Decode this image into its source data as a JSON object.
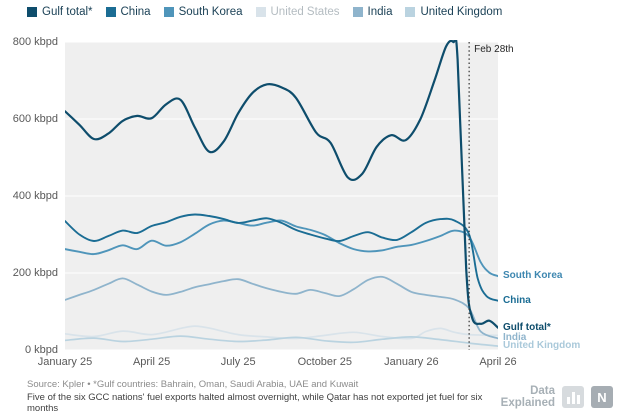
{
  "legend": {
    "items": [
      {
        "label": "Gulf total*",
        "color": "#0e4d6c",
        "text_color": "#1c4257"
      },
      {
        "label": "China",
        "color": "#1b6d94",
        "text_color": "#1c4257"
      },
      {
        "label": "South Korea",
        "color": "#4f95ba",
        "text_color": "#1c4257"
      },
      {
        "label": "United States",
        "color": "#d9e3ea",
        "text_color": "#b4bcc1"
      },
      {
        "label": "India",
        "color": "#8fb4cc",
        "text_color": "#1c4257"
      },
      {
        "label": "United Kingdom",
        "color": "#bad3e0",
        "text_color": "#1c4257"
      }
    ]
  },
  "chart_data": {
    "type": "line",
    "unit": "kbpd",
    "ylim": [
      0,
      800
    ],
    "x_domain_months": [
      0,
      15
    ],
    "grid": true,
    "plot_bg": "#efefef",
    "grid_color": "#ffffff",
    "y_ticks": [
      {
        "value": 0,
        "label": "0 kbpd"
      },
      {
        "value": 200,
        "label": "200 kbpd"
      },
      {
        "value": 400,
        "label": "400 kbpd"
      },
      {
        "value": 600,
        "label": "600 kbpd"
      },
      {
        "value": 800,
        "label": "800 kbpd"
      }
    ],
    "x_ticks": [
      {
        "pos": 0,
        "label": "January 25"
      },
      {
        "pos": 3,
        "label": "April 25"
      },
      {
        "pos": 6,
        "label": "July 25"
      },
      {
        "pos": 9,
        "label": "October 25"
      },
      {
        "pos": 12,
        "label": "January 26"
      },
      {
        "pos": 15,
        "label": "April 26"
      }
    ],
    "annotation": {
      "label": "Feb 28th",
      "x": 14,
      "style": "dotted"
    },
    "series": [
      {
        "name": "United States",
        "color": "#d9e3ea",
        "width": 1.7,
        "points": [
          [
            0,
            42
          ],
          [
            1,
            35
          ],
          [
            2,
            49
          ],
          [
            3,
            40
          ],
          [
            4,
            56
          ],
          [
            4.5,
            62
          ],
          [
            5,
            57
          ],
          [
            6,
            40
          ],
          [
            7,
            34
          ],
          [
            8,
            30
          ],
          [
            9,
            38
          ],
          [
            10,
            46
          ],
          [
            11,
            35
          ],
          [
            12,
            30
          ],
          [
            12.5,
            48
          ],
          [
            13,
            56
          ],
          [
            13.5,
            46
          ],
          [
            14,
            40
          ],
          [
            15,
            38
          ]
        ]
      },
      {
        "name": "United Kingdom",
        "color": "#bad3e0",
        "width": 1.7,
        "points": [
          [
            0,
            25
          ],
          [
            1,
            31
          ],
          [
            2,
            22
          ],
          [
            3,
            28
          ],
          [
            4,
            36
          ],
          [
            5,
            28
          ],
          [
            6,
            22
          ],
          [
            7,
            26
          ],
          [
            8,
            33
          ],
          [
            9,
            24
          ],
          [
            10,
            20
          ],
          [
            11,
            28
          ],
          [
            12,
            34
          ],
          [
            13,
            27
          ],
          [
            14,
            18
          ],
          [
            15,
            10
          ]
        ]
      },
      {
        "name": "India",
        "color": "#8fb4cc",
        "width": 1.8,
        "points": [
          [
            0,
            130
          ],
          [
            0.5,
            143
          ],
          [
            1,
            156
          ],
          [
            1.5,
            172
          ],
          [
            2,
            186
          ],
          [
            2.5,
            170
          ],
          [
            3,
            152
          ],
          [
            3.5,
            143
          ],
          [
            4,
            151
          ],
          [
            4.5,
            163
          ],
          [
            5,
            171
          ],
          [
            5.5,
            179
          ],
          [
            6,
            184
          ],
          [
            6.5,
            172
          ],
          [
            7,
            160
          ],
          [
            7.5,
            151
          ],
          [
            8,
            146
          ],
          [
            8.5,
            156
          ],
          [
            9,
            148
          ],
          [
            9.5,
            140
          ],
          [
            10,
            158
          ],
          [
            10.5,
            182
          ],
          [
            11,
            190
          ],
          [
            11.5,
            172
          ],
          [
            12,
            151
          ],
          [
            12.5,
            143
          ],
          [
            13,
            138
          ],
          [
            13.5,
            131
          ],
          [
            14,
            108
          ],
          [
            14.4,
            48
          ],
          [
            15,
            30
          ]
        ]
      },
      {
        "name": "South Korea",
        "color": "#4f95ba",
        "width": 1.9,
        "points": [
          [
            0,
            262
          ],
          [
            0.5,
            255
          ],
          [
            1,
            249
          ],
          [
            1.5,
            259
          ],
          [
            2,
            272
          ],
          [
            2.5,
            262
          ],
          [
            3,
            284
          ],
          [
            3.5,
            271
          ],
          [
            4,
            280
          ],
          [
            4.5,
            302
          ],
          [
            5,
            326
          ],
          [
            5.5,
            336
          ],
          [
            6,
            330
          ],
          [
            6.5,
            323
          ],
          [
            7,
            331
          ],
          [
            7.5,
            336
          ],
          [
            8,
            321
          ],
          [
            8.5,
            312
          ],
          [
            9,
            299
          ],
          [
            9.5,
            278
          ],
          [
            10,
            262
          ],
          [
            10.5,
            256
          ],
          [
            11,
            259
          ],
          [
            11.5,
            268
          ],
          [
            12,
            273
          ],
          [
            12.5,
            283
          ],
          [
            13,
            296
          ],
          [
            13.5,
            310
          ],
          [
            14,
            294
          ],
          [
            14.4,
            228
          ],
          [
            14.7,
            201
          ],
          [
            15,
            192
          ]
        ]
      },
      {
        "name": "China",
        "color": "#1b6d94",
        "width": 1.9,
        "points": [
          [
            0,
            335
          ],
          [
            0.5,
            300
          ],
          [
            1,
            283
          ],
          [
            1.5,
            296
          ],
          [
            2,
            310
          ],
          [
            2.5,
            304
          ],
          [
            3,
            322
          ],
          [
            3.5,
            332
          ],
          [
            4,
            346
          ],
          [
            4.5,
            352
          ],
          [
            5,
            348
          ],
          [
            5.5,
            340
          ],
          [
            6,
            330
          ],
          [
            6.5,
            336
          ],
          [
            7,
            342
          ],
          [
            7.5,
            330
          ],
          [
            8,
            312
          ],
          [
            8.5,
            300
          ],
          [
            9,
            290
          ],
          [
            9.5,
            283
          ],
          [
            10,
            296
          ],
          [
            10.5,
            306
          ],
          [
            11,
            292
          ],
          [
            11.5,
            286
          ],
          [
            12,
            306
          ],
          [
            12.5,
            330
          ],
          [
            13,
            340
          ],
          [
            13.5,
            336
          ],
          [
            14,
            300
          ],
          [
            14.3,
            185
          ],
          [
            14.6,
            140
          ],
          [
            15,
            128
          ]
        ]
      },
      {
        "name": "Gulf total*",
        "color": "#0e4d6c",
        "width": 2.2,
        "points": [
          [
            0,
            620
          ],
          [
            0.5,
            585
          ],
          [
            1,
            548
          ],
          [
            1.5,
            562
          ],
          [
            2,
            595
          ],
          [
            2.5,
            608
          ],
          [
            3,
            602
          ],
          [
            3.5,
            638
          ],
          [
            4,
            650
          ],
          [
            4.5,
            578
          ],
          [
            5,
            515
          ],
          [
            5.5,
            542
          ],
          [
            6,
            615
          ],
          [
            6.5,
            668
          ],
          [
            7,
            690
          ],
          [
            7.5,
            682
          ],
          [
            8,
            655
          ],
          [
            8.7,
            565
          ],
          [
            9.2,
            538
          ],
          [
            9.8,
            448
          ],
          [
            10.3,
            458
          ],
          [
            10.8,
            528
          ],
          [
            11.3,
            558
          ],
          [
            11.8,
            545
          ],
          [
            12.3,
            598
          ],
          [
            12.8,
            700
          ],
          [
            13.2,
            788
          ],
          [
            13.45,
            800
          ],
          [
            13.6,
            755
          ],
          [
            13.9,
            210
          ],
          [
            14.1,
            85
          ],
          [
            14.4,
            68
          ],
          [
            14.7,
            76
          ],
          [
            15,
            58
          ]
        ]
      }
    ],
    "end_labels": [
      {
        "label": "South Korea",
        "value": 192,
        "color": "#3e87b0"
      },
      {
        "label": "China",
        "value": 128,
        "color": "#1b6d94"
      },
      {
        "label": "Gulf total*",
        "value": 58,
        "color": "#0e4d6c"
      },
      {
        "label": "India",
        "value": 30,
        "color": "#8fb4cc"
      },
      {
        "label": "United Kingdom",
        "value": 10,
        "color": "#aac9da"
      }
    ]
  },
  "footer": {
    "source": "Source: Kpler • *Gulf countries: Bahrain, Oman, Saudi Arabia, UAE and Kuwait",
    "caption": "Five of the six GCC nations' fuel exports halted almost overnight, while Qatar has not exported jet fuel for six months"
  },
  "brand": {
    "line1": "Data",
    "line2": "Explained",
    "logo_letter": "N"
  }
}
